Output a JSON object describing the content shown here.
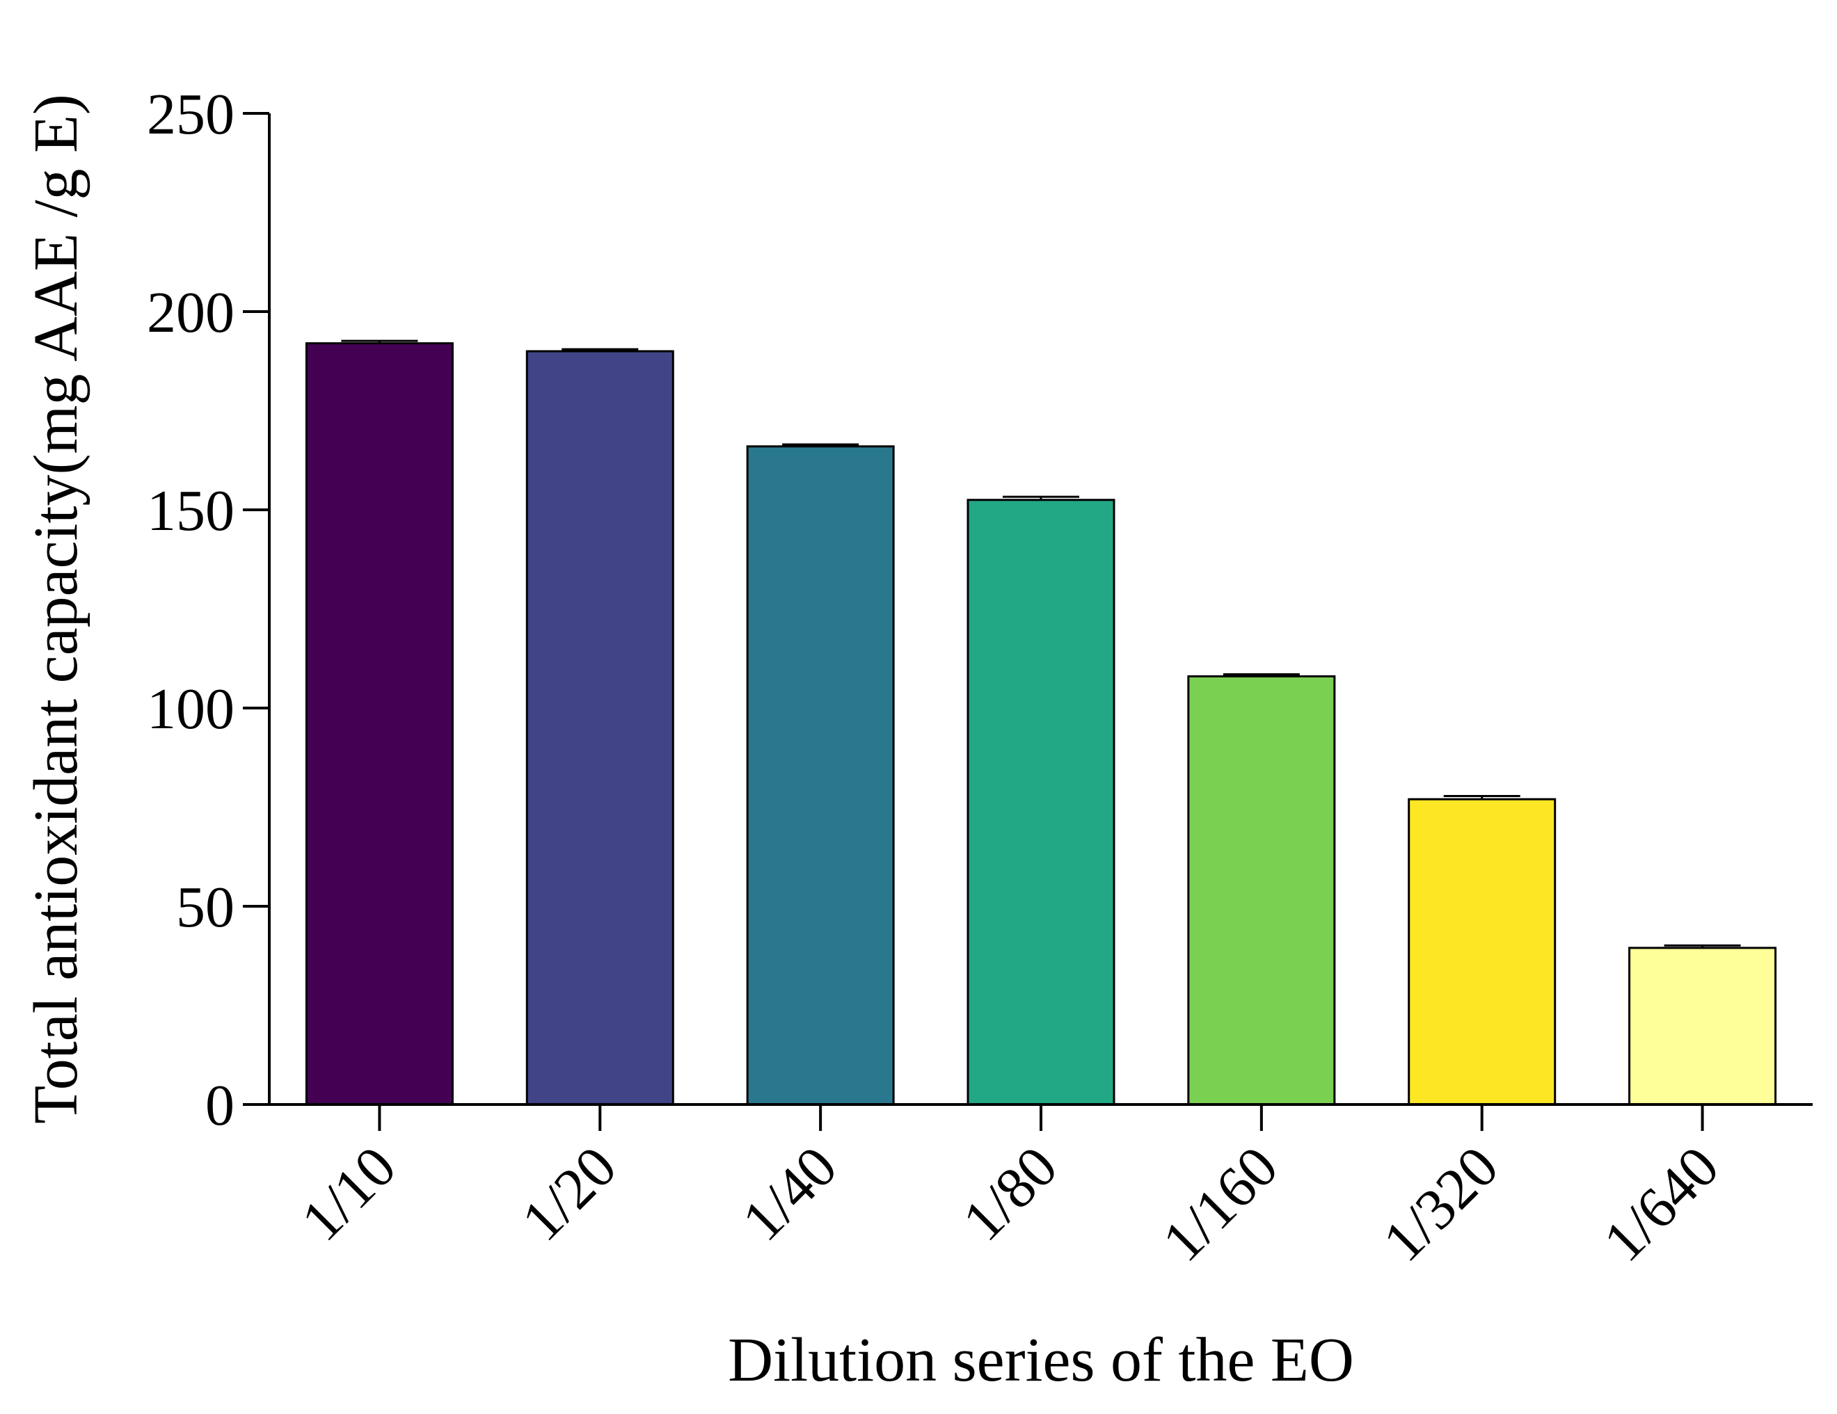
{
  "chart_data": {
    "type": "bar",
    "xlabel": "Dilution series of the EO",
    "ylabel": "Total antioxidant capacity(mg AAE /g E)",
    "categories": [
      "1/10",
      "1/20",
      "1/40",
      "1/80",
      "1/160",
      "1/320",
      "1/640"
    ],
    "values": [
      192,
      190,
      166,
      152.5,
      108,
      77,
      39.5
    ],
    "errors": [
      0.6,
      0.5,
      0.5,
      0.8,
      0.5,
      0.8,
      0.6
    ],
    "colors": [
      "#440154",
      "#414487",
      "#2a788e",
      "#22a884",
      "#7ad151",
      "#fde725",
      "#ffff99"
    ],
    "yticks": [
      0,
      50,
      100,
      150,
      200,
      250
    ],
    "ylim": [
      0,
      250
    ],
    "grid": false,
    "legend": "none"
  }
}
